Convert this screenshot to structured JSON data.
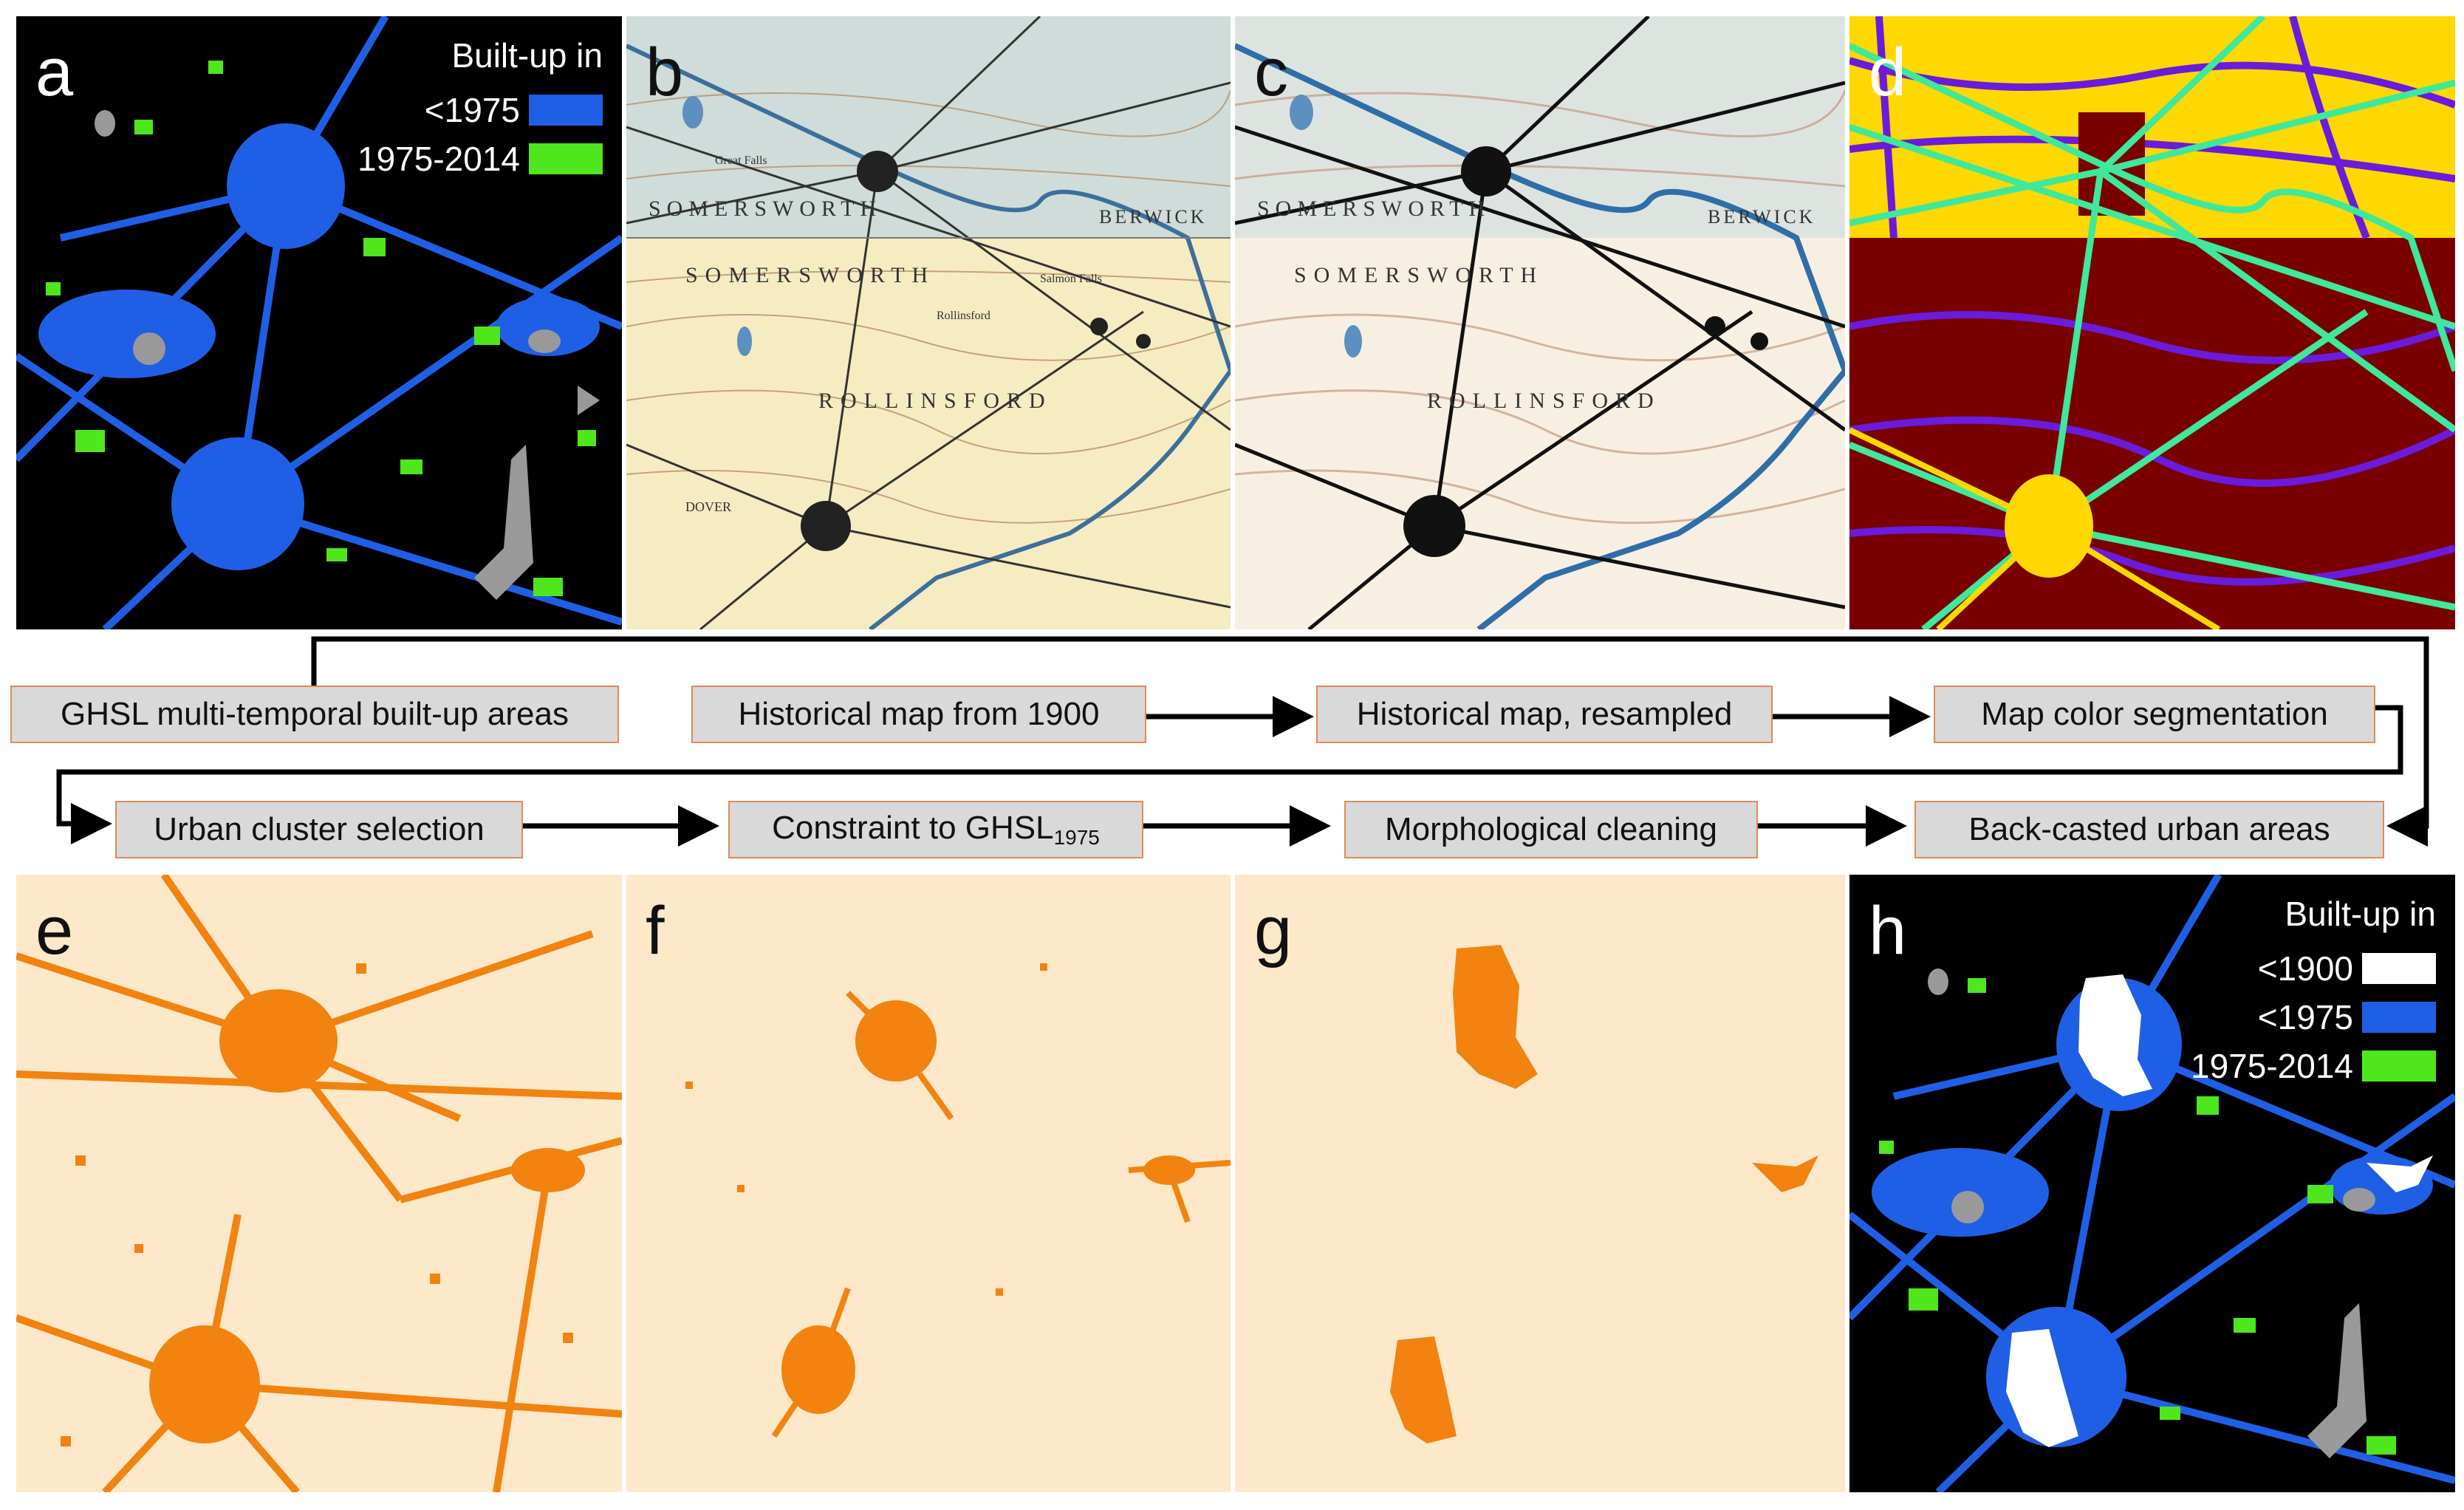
{
  "panels": [
    {
      "id": "a",
      "label": "a"
    },
    {
      "id": "b",
      "label": "b"
    },
    {
      "id": "c",
      "label": "c"
    },
    {
      "id": "d",
      "label": "d"
    },
    {
      "id": "e",
      "label": "e"
    },
    {
      "id": "f",
      "label": "f"
    },
    {
      "id": "g",
      "label": "g"
    },
    {
      "id": "h",
      "label": "h"
    }
  ],
  "legend_a": {
    "title": "Built-up in",
    "items": [
      {
        "label": "<1975",
        "color": "#1f5fe6"
      },
      {
        "label": "1975-2014",
        "color": "#4ee61c"
      }
    ]
  },
  "legend_h": {
    "title": "Built-up in",
    "items": [
      {
        "label": "<1900",
        "color": "#ffffff"
      },
      {
        "label": "<1975",
        "color": "#1f5fe6"
      },
      {
        "label": "1975-2014",
        "color": "#4ee61c"
      }
    ]
  },
  "map_text": {
    "somersworth_top": "SOMERSWORTH",
    "somersworth": "SOMERSWORTH",
    "rollinsford": "ROLLINSFORD",
    "berwick": "BERWICK",
    "great_falls": "Great Falls",
    "dover": "DOVER",
    "salmon_falls": "Salmon Falls",
    "rollinsford_small": "Rollinsford"
  },
  "workflow": {
    "steps": [
      {
        "label": "GHSL multi-temporal built-up areas"
      },
      {
        "label": "Historical map from 1900"
      },
      {
        "label": "Historical map, resampled"
      },
      {
        "label": "Map color segmentation"
      },
      {
        "label": "Urban cluster selection"
      },
      {
        "label": "Constraint to GHSL",
        "sub": "1975"
      },
      {
        "label": "Morphological cleaning"
      },
      {
        "label": "Back-casted urban areas"
      }
    ]
  },
  "colors": {
    "built_before_1975": "#1f5fe6",
    "built_1975_2014": "#4ee61c",
    "built_before_1900": "#ffffff",
    "urban_cluster": "#f28310",
    "cluster_background": "#fde9c9",
    "segmentation_maroon": "#7a0000",
    "segmentation_yellow": "#ffd800",
    "segmentation_purple": "#6a1bdc",
    "segmentation_green": "#3fe89a",
    "map_paper": "#f6ecc2",
    "water": "#999999"
  }
}
